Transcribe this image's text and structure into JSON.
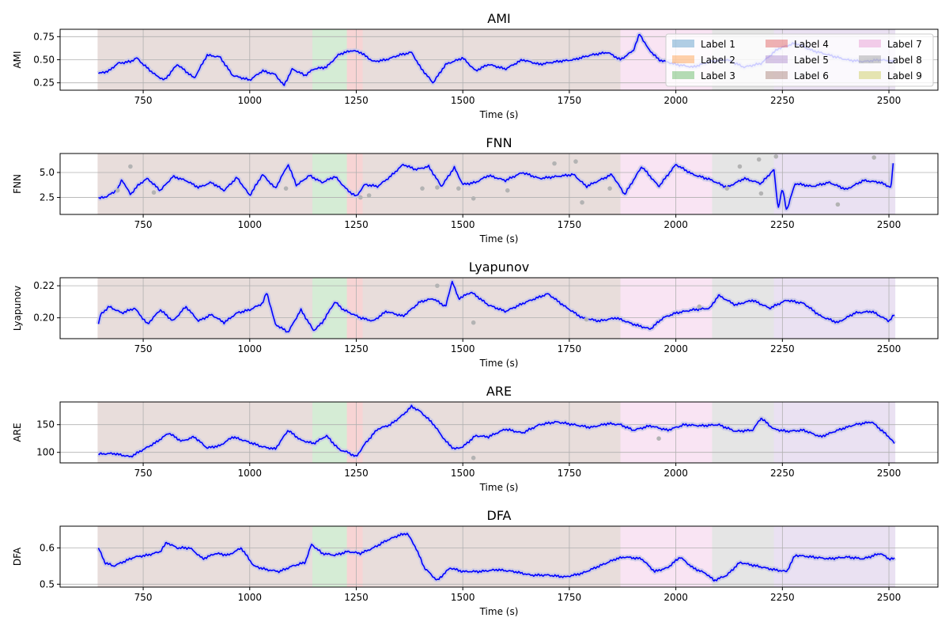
{
  "figure": {
    "width": 1200,
    "height": 800
  },
  "colors": {
    "line": "#0000ff",
    "scatter": "#b3b3b3",
    "band": "#c8c8e6",
    "grid": "#b0b0b0",
    "axis": "#000000"
  },
  "legend": {
    "placement": "top-right",
    "items": [
      {
        "label": "Label 1",
        "color": "#1f77b4"
      },
      {
        "label": "Label 2",
        "color": "#ff7f0e"
      },
      {
        "label": "Label 3",
        "color": "#2ca02c"
      },
      {
        "label": "Label 4",
        "color": "#d62728"
      },
      {
        "label": "Label 5",
        "color": "#9467bd"
      },
      {
        "label": "Label 6",
        "color": "#8c564b"
      },
      {
        "label": "Label 7",
        "color": "#e377c2"
      },
      {
        "label": "Label 8",
        "color": "#7f7f7f"
      },
      {
        "label": "Label 9",
        "color": "#bcbd22"
      }
    ]
  },
  "regions": [
    {
      "x0": 643,
      "x1": 1147,
      "color": "#8c564b"
    },
    {
      "x0": 1147,
      "x1": 1228,
      "color": "#2ca02c"
    },
    {
      "x0": 1228,
      "x1": 1265,
      "color": "#d62728"
    },
    {
      "x0": 1265,
      "x1": 1870,
      "color": "#8c564b"
    },
    {
      "x0": 1870,
      "x1": 2085,
      "color": "#e377c2"
    },
    {
      "x0": 2085,
      "x1": 2230,
      "color": "#7f7f7f"
    },
    {
      "x0": 2230,
      "x1": 2515,
      "color": "#9467bd"
    }
  ],
  "chart_data": [
    {
      "type": "line",
      "title": "AMI",
      "xlabel": "Time (s)",
      "ylabel": "AMI",
      "xlim": [
        555,
        2615
      ],
      "ylim": [
        0.17,
        0.83
      ],
      "xticks": [
        750,
        1000,
        1250,
        1500,
        1750,
        2000,
        2250,
        2500
      ],
      "yticks": [
        0.25,
        0.5,
        0.75
      ],
      "ytick_labels": [
        "0.25",
        "0.50",
        "0.75"
      ],
      "grid": true,
      "legend": true,
      "series": {
        "x": [
          645,
          670,
          690,
          720,
          735,
          750,
          780,
          800,
          830,
          870,
          900,
          930,
          960,
          1000,
          1030,
          1060,
          1080,
          1100,
          1130,
          1150,
          1180,
          1210,
          1240,
          1260,
          1290,
          1320,
          1350,
          1380,
          1400,
          1430,
          1460,
          1500,
          1530,
          1560,
          1600,
          1640,
          1680,
          1720,
          1760,
          1800,
          1840,
          1870,
          1900,
          1915,
          1935,
          1960,
          2000,
          2040,
          2080,
          2120,
          2160,
          2200,
          2240,
          2280,
          2320,
          2360,
          2400,
          2440,
          2480,
          2513
        ],
        "values": [
          0.35,
          0.38,
          0.46,
          0.48,
          0.52,
          0.45,
          0.33,
          0.28,
          0.45,
          0.3,
          0.55,
          0.53,
          0.33,
          0.28,
          0.38,
          0.34,
          0.22,
          0.4,
          0.33,
          0.4,
          0.42,
          0.56,
          0.6,
          0.58,
          0.48,
          0.5,
          0.55,
          0.58,
          0.42,
          0.25,
          0.45,
          0.52,
          0.38,
          0.45,
          0.4,
          0.5,
          0.45,
          0.48,
          0.5,
          0.55,
          0.58,
          0.5,
          0.6,
          0.78,
          0.62,
          0.5,
          0.45,
          0.42,
          0.48,
          0.5,
          0.42,
          0.46,
          0.62,
          0.68,
          0.6,
          0.55,
          0.5,
          0.48,
          0.5,
          0.48
        ]
      },
      "outliers": []
    },
    {
      "type": "line",
      "title": "FNN",
      "xlabel": "Time (s)",
      "ylabel": "FNN",
      "xlim": [
        555,
        2615
      ],
      "ylim": [
        0.8,
        6.9
      ],
      "xticks": [
        750,
        1000,
        1250,
        1500,
        1750,
        2000,
        2250,
        2500
      ],
      "yticks": [
        2.5,
        5.0
      ],
      "ytick_labels": [
        "2.5",
        "5.0"
      ],
      "grid": true,
      "legend": false,
      "series": {
        "x": [
          645,
          665,
          690,
          700,
          720,
          740,
          760,
          790,
          820,
          850,
          880,
          910,
          940,
          970,
          1000,
          1030,
          1060,
          1090,
          1110,
          1140,
          1170,
          1200,
          1230,
          1250,
          1270,
          1300,
          1330,
          1360,
          1390,
          1420,
          1450,
          1480,
          1500,
          1530,
          1560,
          1600,
          1640,
          1680,
          1720,
          1760,
          1790,
          1820,
          1850,
          1880,
          1920,
          1960,
          2000,
          2040,
          2080,
          2120,
          2160,
          2200,
          2230,
          2240,
          2250,
          2260,
          2280,
          2320,
          2360,
          2400,
          2440,
          2480,
          2505,
          2510
        ],
        "values": [
          2.4,
          2.6,
          3.3,
          4.3,
          2.8,
          3.8,
          4.4,
          3.2,
          4.6,
          4.2,
          3.5,
          4.0,
          3.2,
          4.5,
          2.7,
          4.8,
          3.4,
          5.8,
          3.7,
          4.7,
          4.0,
          4.6,
          3.2,
          2.6,
          3.8,
          3.6,
          4.6,
          5.8,
          5.3,
          5.6,
          3.6,
          5.5,
          3.8,
          4.0,
          4.7,
          4.2,
          5.0,
          4.4,
          4.6,
          4.8,
          3.6,
          4.2,
          4.8,
          2.8,
          5.6,
          3.6,
          5.8,
          4.8,
          4.3,
          3.5,
          4.4,
          3.9,
          5.3,
          1.4,
          3.4,
          1.2,
          3.9,
          3.6,
          4.0,
          3.3,
          4.2,
          4.0,
          3.5,
          5.9
        ]
      },
      "outliers": [
        {
          "x": 720,
          "y": 5.6
        },
        {
          "x": 690,
          "y": 3.2
        },
        {
          "x": 775,
          "y": 3.0
        },
        {
          "x": 1085,
          "y": 3.4
        },
        {
          "x": 1260,
          "y": 2.5
        },
        {
          "x": 1280,
          "y": 2.7
        },
        {
          "x": 1405,
          "y": 3.4
        },
        {
          "x": 1440,
          "y": 3.5
        },
        {
          "x": 1490,
          "y": 3.4
        },
        {
          "x": 1525,
          "y": 2.4
        },
        {
          "x": 1605,
          "y": 3.2
        },
        {
          "x": 1715,
          "y": 5.9
        },
        {
          "x": 1765,
          "y": 6.1
        },
        {
          "x": 1780,
          "y": 2.0
        },
        {
          "x": 1845,
          "y": 3.4
        },
        {
          "x": 2120,
          "y": 3.4
        },
        {
          "x": 2150,
          "y": 5.6
        },
        {
          "x": 2195,
          "y": 6.3
        },
        {
          "x": 2200,
          "y": 2.9
        },
        {
          "x": 2235,
          "y": 6.6
        },
        {
          "x": 2380,
          "y": 1.8
        },
        {
          "x": 2465,
          "y": 6.5
        }
      ]
    },
    {
      "type": "line",
      "title": "Lyapunov",
      "xlabel": "Time (s)",
      "ylabel": "Lyapunov",
      "xlim": [
        555,
        2615
      ],
      "ylim": [
        0.187,
        0.225
      ],
      "xticks": [
        750,
        1000,
        1250,
        1500,
        1750,
        2000,
        2250,
        2500
      ],
      "yticks": [
        0.2,
        0.22
      ],
      "ytick_labels": [
        "0.20",
        "0.22"
      ],
      "grid": true,
      "legend": false,
      "series": {
        "x": [
          645,
          650,
          670,
          700,
          730,
          760,
          790,
          820,
          850,
          880,
          910,
          940,
          970,
          1000,
          1030,
          1040,
          1060,
          1090,
          1120,
          1150,
          1170,
          1200,
          1220,
          1260,
          1290,
          1320,
          1360,
          1400,
          1430,
          1460,
          1475,
          1490,
          1520,
          1560,
          1600,
          1650,
          1700,
          1740,
          1780,
          1820,
          1860,
          1900,
          1940,
          1970,
          2000,
          2040,
          2080,
          2100,
          2140,
          2180,
          2220,
          2260,
          2300,
          2340,
          2380,
          2420,
          2460,
          2500,
          2513
        ],
        "values": [
          0.196,
          0.202,
          0.207,
          0.203,
          0.206,
          0.196,
          0.205,
          0.198,
          0.207,
          0.198,
          0.202,
          0.197,
          0.203,
          0.205,
          0.209,
          0.216,
          0.196,
          0.191,
          0.205,
          0.192,
          0.197,
          0.21,
          0.205,
          0.2,
          0.198,
          0.204,
          0.201,
          0.21,
          0.212,
          0.207,
          0.223,
          0.212,
          0.216,
          0.208,
          0.204,
          0.21,
          0.215,
          0.207,
          0.2,
          0.198,
          0.2,
          0.196,
          0.193,
          0.2,
          0.203,
          0.205,
          0.206,
          0.214,
          0.208,
          0.211,
          0.206,
          0.211,
          0.209,
          0.201,
          0.197,
          0.203,
          0.204,
          0.198,
          0.202
        ]
      },
      "outliers": [
        {
          "x": 1440,
          "y": 0.22
        },
        {
          "x": 1525,
          "y": 0.197
        },
        {
          "x": 1790,
          "y": 0.199
        },
        {
          "x": 2055,
          "y": 0.207
        }
      ]
    },
    {
      "type": "line",
      "title": "ARE",
      "xlabel": "Time (s)",
      "ylabel": "ARE",
      "xlim": [
        555,
        2615
      ],
      "ylim": [
        81,
        191
      ],
      "xticks": [
        750,
        1000,
        1250,
        1500,
        1750,
        2000,
        2250,
        2500
      ],
      "yticks": [
        100,
        150
      ],
      "ytick_labels": [
        "100",
        "150"
      ],
      "grid": true,
      "legend": false,
      "series": {
        "x": [
          645,
          680,
          720,
          750,
          780,
          810,
          840,
          870,
          900,
          930,
          960,
          1000,
          1030,
          1060,
          1090,
          1120,
          1150,
          1180,
          1210,
          1230,
          1250,
          1270,
          1300,
          1330,
          1360,
          1380,
          1400,
          1430,
          1460,
          1480,
          1500,
          1530,
          1560,
          1600,
          1640,
          1680,
          1720,
          1760,
          1800,
          1840,
          1870,
          1900,
          1940,
          1980,
          2020,
          2060,
          2100,
          2140,
          2180,
          2200,
          2230,
          2260,
          2300,
          2340,
          2380,
          2420,
          2460,
          2500,
          2513
        ],
        "values": [
          97,
          98,
          92,
          105,
          118,
          135,
          120,
          128,
          108,
          112,
          128,
          118,
          110,
          106,
          140,
          122,
          116,
          130,
          105,
          100,
          92,
          115,
          142,
          150,
          168,
          183,
          174,
          152,
          120,
          106,
          110,
          130,
          128,
          142,
          135,
          150,
          155,
          150,
          145,
          152,
          150,
          140,
          148,
          140,
          150,
          148,
          150,
          138,
          140,
          162,
          142,
          138,
          140,
          128,
          140,
          150,
          155,
          128,
          116
        ]
      },
      "outliers": [
        {
          "x": 1525,
          "y": 90
        },
        {
          "x": 1960,
          "y": 125
        }
      ]
    },
    {
      "type": "line",
      "title": "DFA",
      "xlabel": "Time (s)",
      "ylabel": "DFA",
      "xlim": [
        555,
        2615
      ],
      "ylim": [
        0.492,
        0.66
      ],
      "xticks": [
        750,
        1000,
        1250,
        1500,
        1750,
        2000,
        2250,
        2500
      ],
      "yticks": [
        0.5,
        0.6
      ],
      "ytick_labels": [
        "0.5",
        "0.6"
      ],
      "grid": true,
      "legend": false,
      "series": {
        "x": [
          645,
          660,
          680,
          700,
          730,
          760,
          790,
          805,
          830,
          860,
          890,
          920,
          950,
          980,
          1010,
          1040,
          1070,
          1100,
          1130,
          1145,
          1170,
          1200,
          1230,
          1260,
          1290,
          1320,
          1350,
          1370,
          1390,
          1410,
          1440,
          1470,
          1500,
          1540,
          1580,
          1620,
          1660,
          1700,
          1740,
          1780,
          1820,
          1860,
          1880,
          1920,
          1950,
          1980,
          2010,
          2040,
          2070,
          2090,
          2120,
          2150,
          2190,
          2230,
          2260,
          2280,
          2320,
          2360,
          2400,
          2440,
          2480,
          2500,
          2513
        ],
        "values": [
          0.6,
          0.56,
          0.55,
          0.56,
          0.575,
          0.58,
          0.59,
          0.615,
          0.6,
          0.6,
          0.57,
          0.585,
          0.58,
          0.6,
          0.55,
          0.54,
          0.535,
          0.55,
          0.56,
          0.61,
          0.585,
          0.58,
          0.59,
          0.585,
          0.6,
          0.62,
          0.635,
          0.64,
          0.6,
          0.545,
          0.51,
          0.545,
          0.535,
          0.535,
          0.54,
          0.535,
          0.525,
          0.525,
          0.52,
          0.53,
          0.55,
          0.57,
          0.575,
          0.57,
          0.535,
          0.545,
          0.575,
          0.545,
          0.53,
          0.51,
          0.525,
          0.56,
          0.55,
          0.54,
          0.535,
          0.58,
          0.575,
          0.57,
          0.575,
          0.57,
          0.585,
          0.57,
          0.57
        ]
      },
      "outliers": []
    }
  ]
}
